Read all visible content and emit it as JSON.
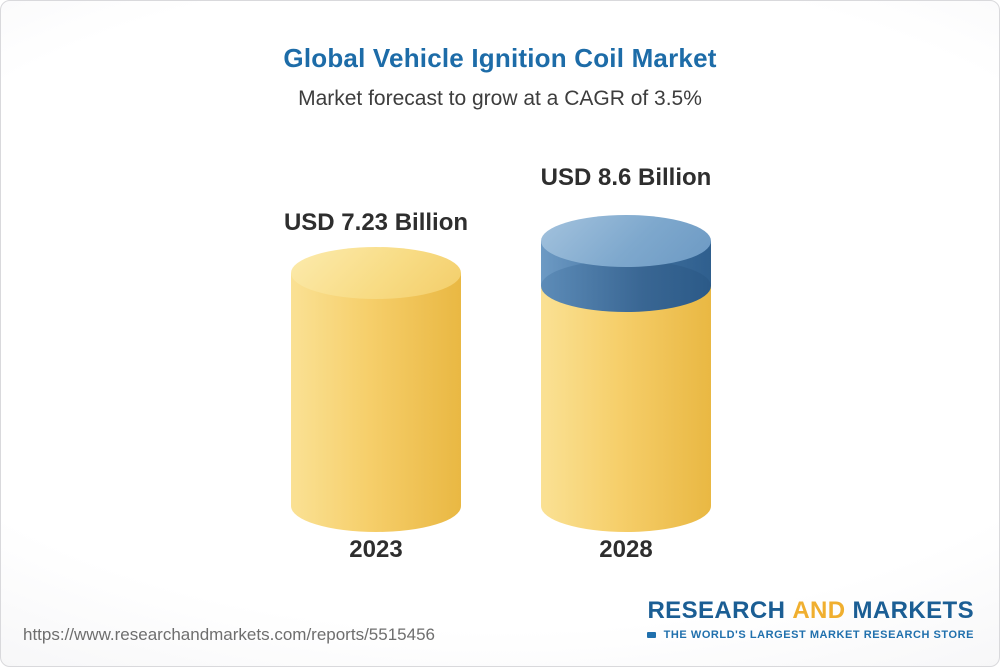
{
  "page": {
    "title": "Global Vehicle Ignition Coil Market",
    "subtitle": "Market forecast to grow at a CAGR of 3.5%"
  },
  "chart_data": {
    "type": "bar",
    "variant": "3d-cylinder",
    "categories": [
      "2023",
      "2028"
    ],
    "values": [
      7.23,
      8.6
    ],
    "value_labels": [
      "USD 7.23 Billion",
      "USD 8.6 Billion"
    ],
    "title": "Global Vehicle Ignition Coil Market",
    "subtitle": "Market forecast to grow at a CAGR of 3.5%",
    "unit": "USD Billion",
    "cagr_percent": 3.5,
    "xlabel": "",
    "ylabel": "",
    "grid": false,
    "legend": "none",
    "colors": {
      "base_segment": "#F6CF6B",
      "growth_segment": "#41719F",
      "title_text": "#1D6CA8",
      "label_text": "#2E2E2E"
    },
    "notes": "2028 cylinder shows 2023-equivalent base in gold with the growth-to-2028 segment as a blue cap on top"
  },
  "footer": {
    "url": "https://www.researchandmarkets.com/reports/5515456",
    "logo": {
      "part1": "RESEARCH",
      "part2": "AND",
      "part3": "MARKETS",
      "tagline": "THE WORLD'S LARGEST MARKET RESEARCH STORE"
    }
  }
}
